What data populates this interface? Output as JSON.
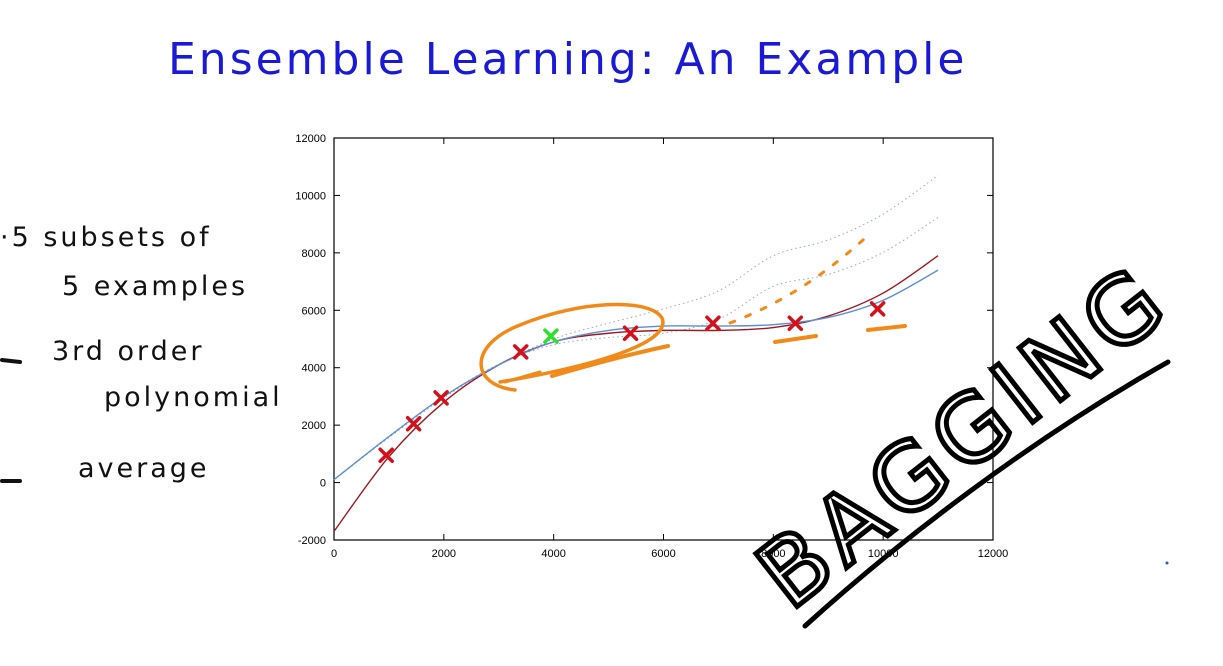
{
  "page": {
    "title": "Ensemble Learning: An Example",
    "notes": [
      "·5 subsets of",
      "5 examples",
      "3rd order",
      "polynomial",
      "average"
    ],
    "annotation": "BAGGING"
  },
  "colors": {
    "title_ink": "#1a1ad6",
    "note_ink": "#111111",
    "marker_red": "#d4101c",
    "marker_green": "#2ee02e",
    "fit_red": "#a01820",
    "fit_blue": "#5b8fd6",
    "highlight_orange": "#f28a1a",
    "subset_dotted": "#9ab"
  },
  "chart_data": {
    "type": "scatter",
    "xlim": [
      0,
      12000
    ],
    "ylim": [
      -2000,
      12000
    ],
    "x_ticks": [
      0,
      2000,
      4000,
      6000,
      8000,
      10000,
      12000
    ],
    "y_ticks": [
      -2000,
      0,
      2000,
      4000,
      6000,
      8000,
      10000,
      12000
    ],
    "x_tick_labels": [
      "0",
      "2000",
      "4000",
      "6000",
      "8000",
      "10000",
      "12000"
    ],
    "y_tick_labels": [
      "-2000",
      "0",
      "2000",
      "4000",
      "6000",
      "8000",
      "10000",
      "12000"
    ],
    "series": [
      {
        "marker": "x",
        "color": "red",
        "x": [
          950,
          1450,
          1950,
          3400,
          5400,
          6900,
          8400,
          9900
        ],
        "y": [
          950,
          2050,
          2950,
          4550,
          5200,
          5550,
          5550,
          6050
        ]
      },
      {
        "marker": "x",
        "color": "green",
        "x": [
          3950
        ],
        "y": [
          5100
        ]
      }
    ],
    "fits": [
      {
        "color": "red",
        "x": [
          0,
          1000,
          2000,
          3000,
          4000,
          5000,
          6000,
          7000,
          8000,
          9000,
          10000,
          11000
        ],
        "y": [
          -1700,
          900,
          2800,
          4100,
          4900,
          5200,
          5300,
          5300,
          5400,
          5800,
          6600,
          7900
        ]
      },
      {
        "color": "blue",
        "x": [
          0,
          1000,
          2000,
          3000,
          4000,
          5000,
          6000,
          7000,
          8000,
          9000,
          10000,
          11000
        ],
        "y": [
          100,
          1600,
          3000,
          4100,
          4900,
          5300,
          5450,
          5450,
          5500,
          5750,
          6350,
          7400
        ]
      }
    ]
  }
}
